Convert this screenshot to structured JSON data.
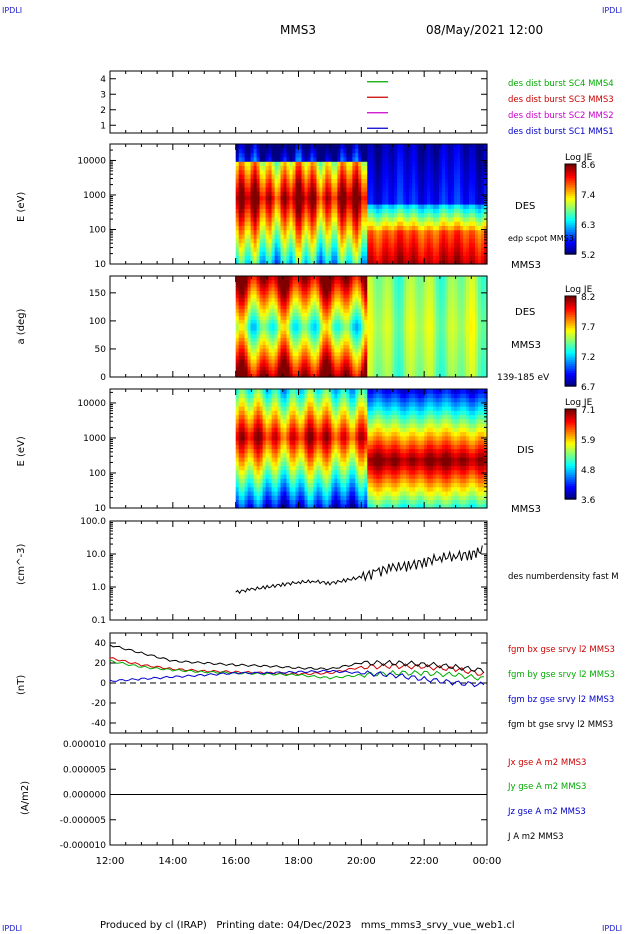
{
  "header": {
    "corner_tl": "IPDLI",
    "corner_tr": "IPDLI",
    "mission": "MMS3",
    "date": "08/May/2021 12:00"
  },
  "footer": {
    "corner_bl": "IPDLI",
    "corner_br": "IPDLI",
    "text": "Produced by cl (IRAP)   Printing date: 04/Dec/2023   mms_mms3_srvy_vue_web1.cl"
  },
  "colors": {
    "frame": "#000000",
    "blue": "#0000cc",
    "magenta": "#cc00cc",
    "red": "#cc0000",
    "green": "#00aa00",
    "corner": "#1a1acc"
  },
  "chart_data": [
    {
      "type": "line",
      "id": "availability",
      "ylim": [
        0.5,
        4.5
      ],
      "yticks": [
        "1",
        "2",
        "3",
        "4"
      ],
      "series": [
        {
          "name": "des dist burst SC1 MMS1",
          "color": "#0000cc",
          "level": 1
        },
        {
          "name": "des dist burst SC2 MMS2",
          "color": "#cc00cc",
          "level": 2
        },
        {
          "name": "des dist burst SC3 MMS3",
          "color": "#cc0000",
          "level": 3
        },
        {
          "name": "des dist burst SC4 MMS4",
          "color": "#00aa00",
          "level": 4
        }
      ]
    },
    {
      "type": "heatmap",
      "id": "des-energy",
      "ylabel": "E (eV)",
      "yscale": "log",
      "ylim": [
        10,
        30000
      ],
      "yticks": [
        "10",
        "100",
        "1000",
        "10000"
      ],
      "right_labels": [
        "DES",
        "edp scpot MMS3",
        "MMS3"
      ],
      "colorbar": {
        "title": "Log JE",
        "ticks": [
          "8.6",
          "7.4",
          "6.3",
          "5.2"
        ]
      },
      "data_start_hour": 16.0
    },
    {
      "type": "heatmap",
      "id": "des-pitch",
      "ylabel": "a (deg)",
      "ylim": [
        0,
        180
      ],
      "yticks": [
        "0",
        "50",
        "100",
        "150"
      ],
      "right_labels": [
        "DES",
        "MMS3",
        "139-185 eV"
      ],
      "colorbar": {
        "title": "Log JE",
        "ticks": [
          "8.2",
          "7.7",
          "7.2",
          "6.7"
        ]
      },
      "data_start_hour": 16.0
    },
    {
      "type": "heatmap",
      "id": "dis-energy",
      "ylabel": "E (eV)",
      "yscale": "log",
      "ylim": [
        10,
        25000
      ],
      "yticks": [
        "10",
        "100",
        "1000",
        "10000"
      ],
      "right_labels": [
        "DIS",
        "MMS3"
      ],
      "colorbar": {
        "title": "Log JE",
        "ticks": [
          "7.1",
          "5.9",
          "4.8",
          "3.6"
        ]
      },
      "data_start_hour": 16.0
    },
    {
      "type": "line",
      "id": "density",
      "ylabel": "(cm^-3)",
      "yscale": "log",
      "ylim": [
        0.1,
        100
      ],
      "yticks": [
        "0.1",
        "1.0",
        "10.0",
        "100.0"
      ],
      "series": [
        {
          "name": "des numberdensity fast M",
          "color": "#000000",
          "x": [
            16.0,
            16.5,
            17.0,
            17.5,
            18.0,
            18.5,
            19.0,
            19.5,
            20.0,
            20.5,
            21.0,
            21.5,
            22.0,
            22.5,
            23.0,
            23.5,
            23.9
          ],
          "y": [
            0.7,
            0.85,
            1.0,
            1.2,
            1.4,
            1.5,
            1.3,
            1.6,
            2.0,
            3.0,
            4.0,
            4.5,
            6.0,
            8.0,
            9.0,
            10.0,
            14.0
          ]
        }
      ]
    },
    {
      "type": "line",
      "id": "magnetic-field",
      "ylabel": "(nT)",
      "ylim": [
        -50,
        50
      ],
      "yticks": [
        "-40",
        "-20",
        "0",
        "20",
        "40"
      ],
      "series": [
        {
          "name": "fgm bx gse srvy l2 MMS3",
          "color": "#cc0000",
          "x": [
            12,
            13,
            14,
            15,
            16,
            17,
            18,
            19,
            20,
            21,
            22,
            23,
            24
          ],
          "y": [
            25,
            18,
            14,
            12,
            11,
            10,
            9,
            10,
            16,
            17,
            16,
            14,
            8
          ]
        },
        {
          "name": "fgm by gse srvy l2 MMS3",
          "color": "#00aa00",
          "x": [
            12,
            13,
            14,
            15,
            16,
            17,
            18,
            19,
            20,
            21,
            22,
            23,
            24
          ],
          "y": [
            22,
            16,
            13,
            11,
            10,
            9,
            8,
            5,
            8,
            10,
            10,
            8,
            4
          ]
        },
        {
          "name": "fgm bz gse srvy l2 MMS3",
          "color": "#0000cc",
          "x": [
            12,
            13,
            14,
            15,
            16,
            17,
            18,
            19,
            20,
            21,
            22,
            23,
            24
          ],
          "y": [
            2,
            4,
            6,
            8,
            10,
            10,
            11,
            12,
            10,
            8,
            4,
            0,
            -2
          ]
        },
        {
          "name": "fgm bt gse srvy l2 MMS3",
          "color": "#000000",
          "x": [
            12,
            13,
            14,
            15,
            16,
            17,
            18,
            19,
            20,
            21,
            22,
            23,
            24
          ],
          "y": [
            38,
            30,
            22,
            20,
            18,
            17,
            15,
            14,
            20,
            20,
            19,
            16,
            12
          ]
        }
      ]
    },
    {
      "type": "line",
      "id": "current-density",
      "ylabel": "(A/m2)",
      "ylim": [
        -0.0001,
        0.0001
      ],
      "yticks": [
        "-0.000010",
        "-0.000005",
        "0.000000",
        "0.000005",
        "0.000010"
      ],
      "series": [
        {
          "name": "Jx gse A m2 MMS3",
          "color": "#cc0000"
        },
        {
          "name": "Jy gse A m2 MMS3",
          "color": "#00aa00"
        },
        {
          "name": "Jz gse A m2 MMS3",
          "color": "#0000cc"
        },
        {
          "name": "J A m2 MMS3",
          "color": "#000000",
          "x": [
            12,
            24
          ],
          "y": [
            0,
            0
          ]
        }
      ]
    }
  ],
  "x_axis": {
    "ticks": [
      "12:00",
      "14:00",
      "16:00",
      "18:00",
      "20:00",
      "22:00",
      "00:00"
    ]
  }
}
